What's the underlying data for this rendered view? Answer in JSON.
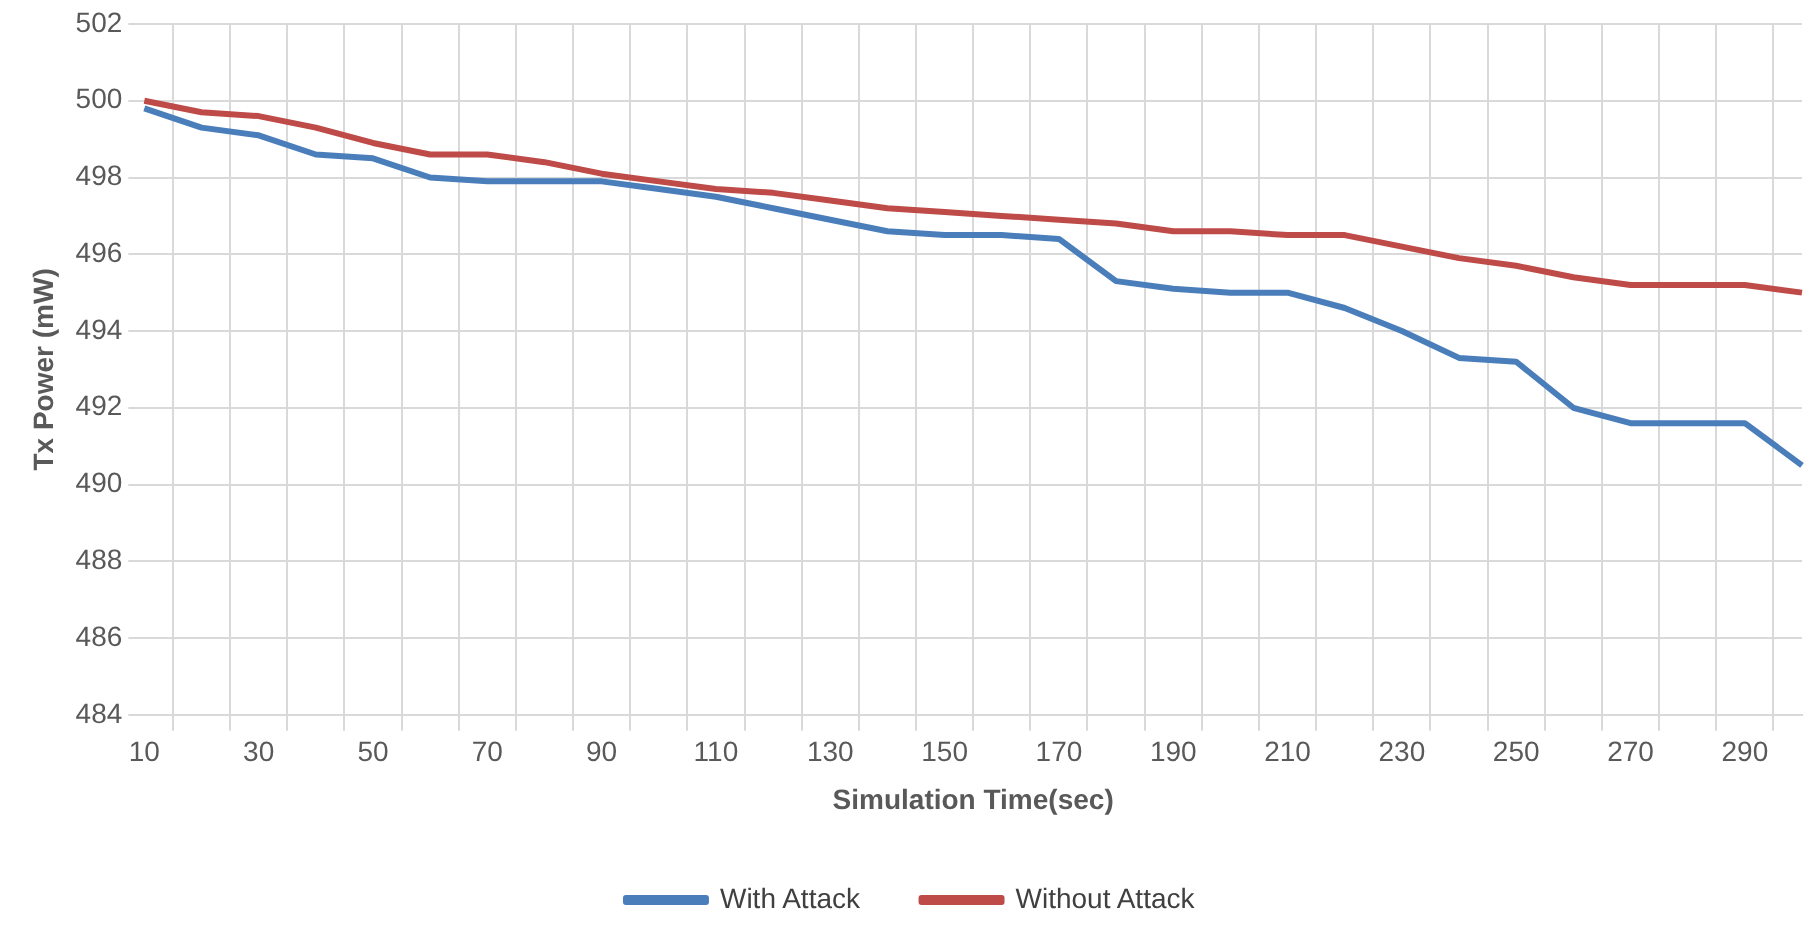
{
  "chart_data": {
    "type": "line",
    "xlabel": "Simulation Time(sec)",
    "ylabel": "Tx Power (mW)",
    "categories": [
      "10",
      null,
      "30",
      null,
      "50",
      null,
      "70",
      null,
      "90",
      null,
      "110",
      null,
      "130",
      null,
      "150",
      null,
      "170",
      null,
      "190",
      null,
      "210",
      null,
      "230",
      null,
      "250",
      null,
      "270",
      null,
      "290",
      null
    ],
    "series": [
      {
        "name": "With Attack",
        "color": "#4a7ebb",
        "values": [
          499.8,
          499.3,
          499.1,
          498.6,
          498.5,
          498.0,
          497.9,
          497.9,
          497.9,
          497.7,
          497.5,
          497.2,
          496.9,
          496.6,
          496.5,
          496.5,
          496.4,
          495.3,
          495.1,
          495.0,
          495.0,
          494.6,
          494.0,
          493.3,
          493.2,
          492.0,
          491.6,
          491.6,
          491.6,
          490.5
        ]
      },
      {
        "name": "Without Attack",
        "color": "#be4b48",
        "values": [
          500.0,
          499.7,
          499.6,
          499.3,
          498.9,
          498.6,
          498.6,
          498.4,
          498.1,
          497.9,
          497.7,
          497.6,
          497.4,
          497.2,
          497.1,
          497.0,
          496.9,
          496.8,
          496.6,
          496.6,
          496.5,
          496.5,
          496.2,
          495.9,
          495.7,
          495.4,
          495.2,
          495.2,
          495.2,
          495.0
        ]
      }
    ],
    "ylim": [
      484,
      502
    ],
    "yticks": [
      484,
      486,
      488,
      490,
      492,
      494,
      496,
      498,
      500,
      502
    ],
    "grid": true,
    "legend": "bottom",
    "marker": "none",
    "line_style": "solid"
  }
}
